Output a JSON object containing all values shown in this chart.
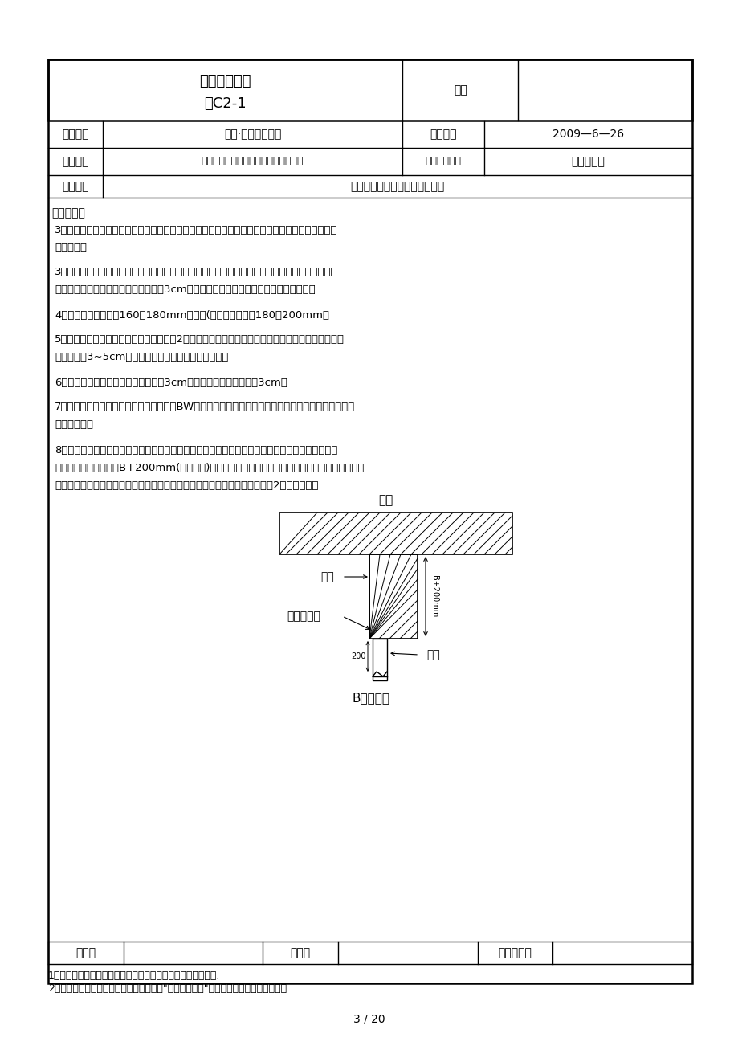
{
  "bg": "#ffffff",
  "title_line1": "技术交底记录",
  "title_line2": "表C2-1",
  "bianhao_label": "编号",
  "row1_l1": "工程名称",
  "row1_v1": "金沙·鹭岛一期工程",
  "row1_l2": "交底日期",
  "row1_v2": "2009—6—26",
  "row2_l1": "施工单位",
  "row2_v1": "中铁建设集团有限公司金沙鹭岛项目部",
  "row2_l2": "分项工程名称",
  "row2_v2": "混凝土工程",
  "row3_l1": "交底提要",
  "row3_v1": "地下墙、柱混凝土浇筑技术交底",
  "content_title": "交底内容：",
  "content": [
    "3、作业准备：浇筑前必须将模板内的垃圾、灰土等杂物及钢筋上的污染清除干净，检查保护层垫块",
    "是否垫好；",
    "",
    "3、因梁、板与墙、柱一起浇注过程中当墙板混凝土强度不一致时，先用塔吊或者布料机浇注柱核心",
    "区的混凝土，内墙浇筑高度为比板底高3cm，浇注完毕墙体后，在初凝前浇注板混凝土。",
    "",
    "4、坍落度：独立柱为160－180mm，墙体(包括连墙柱）为180－200mm。",
    "",
    "5、浇筑砼前，将墙、柱底施工缝处砼提前2小时撒水湿润，但不得积水；浇筑砼时在柱底先浇筑同砼",
    "配合比砂浆3~5cm，然后再浇筑砼，砂浆用铁锹入模。",
    "",
    "6、浇筑标高：柱浇筑高度为比梁底高3cm。墙浇筑高度为比板底高3cm。",
    "",
    "7、外墙水平施工缝：按照图纸要求，采用BW注浆遇水膨胀止水条，即底板外返墙沿外墙周圈设置遇水",
    "膨胀止水条。",
    "",
    "8、地下室内、外墙交接处，因外墙为抗渗砼而内墙为非抗渗砼，故采取措施防止两种砼互流。内外",
    "墙交接处向内墙方向返B+200mm(为暗柱长)左右设双层钢板网拦截，使用绑扎丝将钢板网与墙立筋",
    "绑扎牢固。分层交圈浇筑，每层先浇外墙砼，再浇筑内墙砼，接茬时间不大于2小时，如下图."
  ],
  "footer_labels": [
    "审核人",
    "交底人",
    "接受交底人"
  ],
  "note1": "1、本表由施工单位填写，交底单位与接受交底单位各保存一份.",
  "note2": "2、当做分项工程施工技术交底时，应填写\"分项工程名称\"栏，其他技术交底可不填写。",
  "page_num": "3 / 20"
}
